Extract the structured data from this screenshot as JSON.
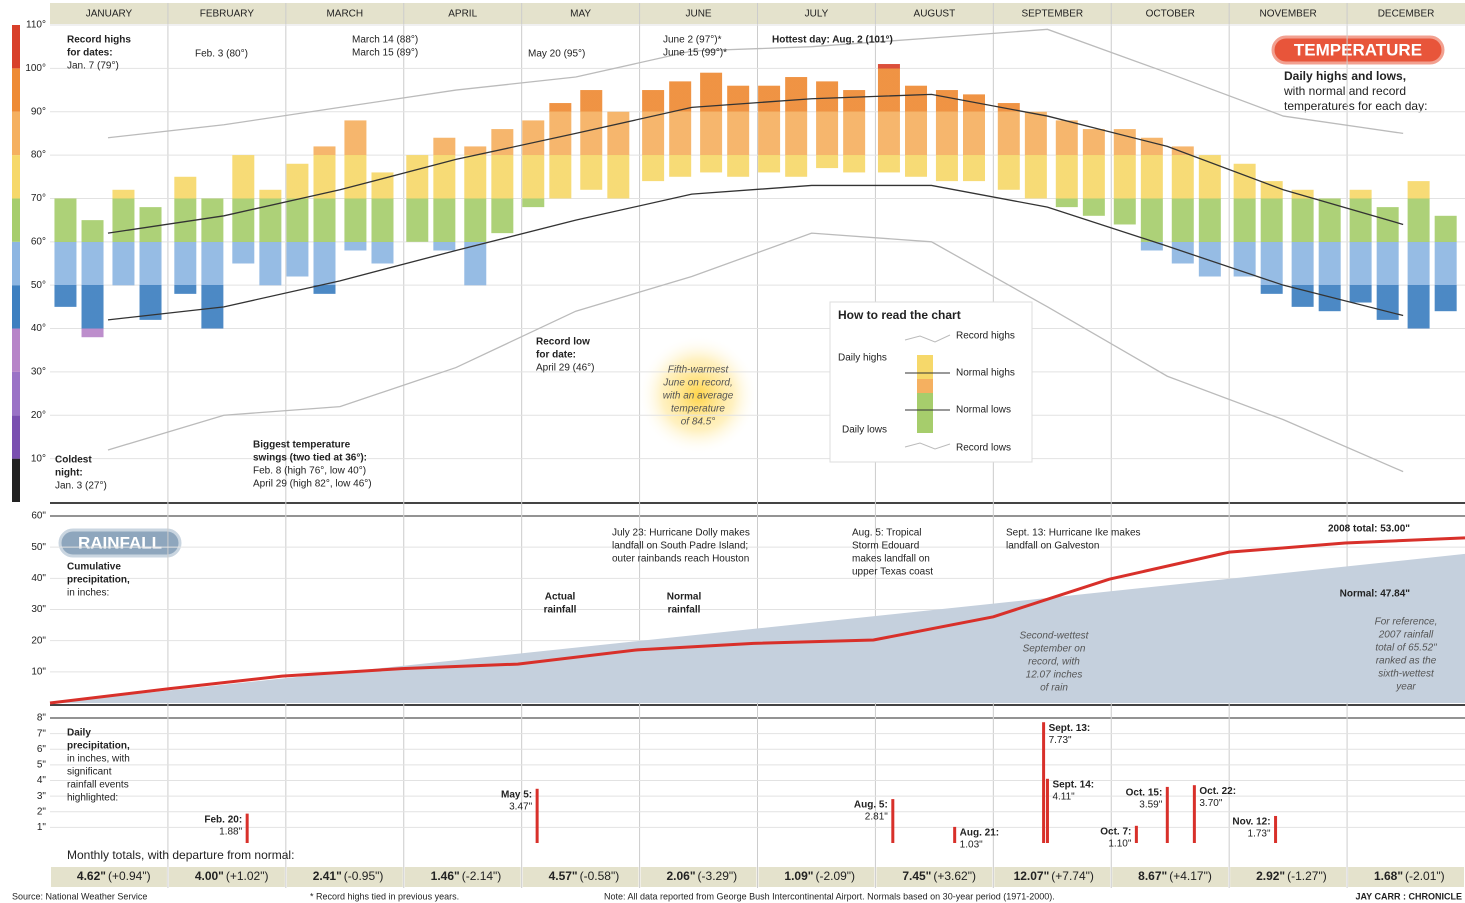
{
  "months": [
    "JANUARY",
    "FEBRUARY",
    "MARCH",
    "APRIL",
    "MAY",
    "JUNE",
    "JULY",
    "AUGUST",
    "SEPTEMBER",
    "OCTOBER",
    "NOVEMBER",
    "DECEMBER"
  ],
  "chart_data": [
    {
      "type": "range-bar",
      "title": "TEMPERATURE",
      "subtitle": [
        "Daily highs and lows,",
        "with normal and record",
        "temperatures for each day:"
      ],
      "xlim": [
        0,
        366
      ],
      "ylim": [
        0,
        110
      ],
      "yticks": [
        {
          "value": 10,
          "label": "10°"
        },
        {
          "value": 20,
          "label": "20°"
        },
        {
          "value": 30,
          "label": "30°"
        },
        {
          "value": 40,
          "label": "40°"
        },
        {
          "value": 50,
          "label": "50°"
        },
        {
          "value": 60,
          "label": "60°"
        },
        {
          "value": 70,
          "label": "70°"
        },
        {
          "value": 80,
          "label": "80°"
        },
        {
          "value": 90,
          "label": "90°"
        },
        {
          "value": 100,
          "label": "100°"
        },
        {
          "value": 110,
          "label": "110°"
        }
      ],
      "x": [
        4,
        11,
        19,
        26,
        35,
        42,
        50,
        57,
        64,
        71,
        79,
        86,
        95,
        102,
        110,
        117,
        125,
        132,
        140,
        147,
        156,
        163,
        171,
        178,
        186,
        193,
        201,
        208,
        217,
        224,
        232,
        239,
        248,
        255,
        263,
        270,
        278,
        285,
        293,
        300,
        309,
        316,
        324,
        331,
        339,
        346,
        354,
        361
      ],
      "series": [
        {
          "name": "Daily highs",
          "values": [
            70,
            65,
            72,
            68,
            75,
            70,
            80,
            72,
            78,
            82,
            88,
            76,
            80,
            84,
            82,
            86,
            88,
            92,
            95,
            90,
            95,
            97,
            99,
            96,
            96,
            98,
            97,
            95,
            101,
            96,
            95,
            94,
            92,
            90,
            88,
            86,
            86,
            84,
            82,
            80,
            78,
            74,
            72,
            70,
            72,
            68,
            74,
            66
          ]
        },
        {
          "name": "Daily lows",
          "values": [
            45,
            38,
            50,
            42,
            48,
            40,
            55,
            50,
            52,
            48,
            58,
            55,
            60,
            58,
            50,
            62,
            68,
            70,
            72,
            70,
            74,
            75,
            76,
            75,
            76,
            75,
            77,
            76,
            76,
            75,
            74,
            74,
            72,
            70,
            68,
            66,
            64,
            58,
            55,
            52,
            52,
            48,
            45,
            44,
            46,
            42,
            40,
            44
          ]
        }
      ],
      "line_x": [
        15,
        45,
        75,
        105,
        136,
        166,
        197,
        228,
        258,
        289,
        319,
        350
      ],
      "lines": [
        {
          "name": "Record highs",
          "color": "#bbbbbb",
          "values": [
            84,
            87,
            91,
            95,
            98,
            104,
            105,
            107,
            109,
            99,
            89,
            85
          ]
        },
        {
          "name": "Normal highs",
          "color": "#333333",
          "values": [
            62,
            66,
            72,
            79,
            85,
            91,
            93,
            94,
            89,
            82,
            72,
            64
          ]
        },
        {
          "name": "Normal lows",
          "color": "#333333",
          "values": [
            42,
            45,
            51,
            58,
            65,
            71,
            73,
            73,
            68,
            59,
            50,
            43
          ]
        },
        {
          "name": "Record lows",
          "color": "#bbbbbb",
          "values": [
            12,
            20,
            22,
            31,
            44,
            52,
            62,
            60,
            45,
            29,
            19,
            7
          ]
        }
      ],
      "color_bands": [
        {
          "from": 0,
          "to": 10,
          "color": "#222222"
        },
        {
          "from": 10,
          "to": 20,
          "color": "#7a4fb0"
        },
        {
          "from": 20,
          "to": 30,
          "color": "#9a72c6"
        },
        {
          "from": 30,
          "to": 40,
          "color": "#b784c8"
        },
        {
          "from": 40,
          "to": 50,
          "color": "#3d7fc0"
        },
        {
          "from": 50,
          "to": 60,
          "color": "#8db6e2"
        },
        {
          "from": 60,
          "to": 70,
          "color": "#a6cd6c"
        },
        {
          "from": 70,
          "to": 80,
          "color": "#f6d86a"
        },
        {
          "from": 80,
          "to": 90,
          "color": "#f5b060"
        },
        {
          "from": 90,
          "to": 100,
          "color": "#ee8a34"
        },
        {
          "from": 100,
          "to": 110,
          "color": "#d8402a"
        }
      ],
      "legend": {
        "title": "How to read the chart",
        "items": [
          "Record highs",
          "Daily highs",
          "Normal highs",
          "Normal lows",
          "Daily lows",
          "Record lows"
        ]
      },
      "grid": true
    },
    {
      "type": "line",
      "title": "RAINFALL",
      "xlim": [
        0,
        366
      ],
      "ylim": [
        0,
        60
      ],
      "yticks": [
        {
          "value": 10,
          "label": "10\""
        },
        {
          "value": 20,
          "label": "20\""
        },
        {
          "value": 30,
          "label": "30\""
        },
        {
          "value": 40,
          "label": "40\""
        },
        {
          "value": 50,
          "label": "50\""
        },
        {
          "value": 60,
          "label": "60\""
        }
      ],
      "series": [
        {
          "name": "Actual rainfall",
          "color": "#d8302a",
          "x": [
            0,
            31,
            60,
            91,
            121,
            152,
            182,
            213,
            244,
            274,
            305,
            335,
            366
          ],
          "values": [
            0,
            4.62,
            8.62,
            11.03,
            12.49,
            17.06,
            19.12,
            20.21,
            27.66,
            39.73,
            48.4,
            51.32,
            53.0
          ]
        },
        {
          "name": "Normal rainfall",
          "color": "#c5d0dd",
          "x": [
            0,
            366
          ],
          "values": [
            0,
            47.84
          ]
        }
      ],
      "grid": true
    },
    {
      "type": "bar",
      "xlim": [
        0,
        366
      ],
      "ylim": [
        0,
        8
      ],
      "color": "#d8302a",
      "yticks": [
        {
          "value": 1,
          "label": "1\""
        },
        {
          "value": 2,
          "label": "2\""
        },
        {
          "value": 3,
          "label": "3\""
        },
        {
          "value": 4,
          "label": "4\""
        },
        {
          "value": 5,
          "label": "5\""
        },
        {
          "value": 6,
          "label": "6\""
        },
        {
          "value": 7,
          "label": "7\""
        },
        {
          "value": 8,
          "label": "8\""
        }
      ],
      "x": [
        51,
        126,
        218,
        234,
        257,
        258,
        281,
        289,
        296,
        317
      ],
      "labels": [
        "Feb. 20:",
        "May 5:",
        "Aug. 5:",
        "Aug. 21:",
        "Sept. 13:",
        "Sept. 14:",
        "Oct. 7:",
        "Oct. 15:",
        "Oct. 22:",
        "Nov. 12:"
      ],
      "values": [
        1.88,
        3.47,
        2.81,
        1.03,
        7.73,
        4.11,
        1.1,
        3.59,
        3.7,
        1.73
      ],
      "value_labels": [
        "1.88\"",
        "3.47\"",
        "2.81\"",
        "1.03\"",
        "7.73\"",
        "4.11\"",
        "1.10\"",
        "3.59\"",
        "3.70\"",
        "1.73\""
      ],
      "grid": true
    }
  ],
  "annotations": [
    [
      "Record highs",
      "for dates:",
      "Jan. 7 (79°)"
    ],
    [
      "Feb. 3 (80°)"
    ],
    [
      "March 14 (88°)",
      "March 15 (89°)"
    ],
    [
      "May 20 (95°)"
    ],
    [
      "June 2 (97°)*",
      "June 15 (99°)*"
    ],
    [
      "Hottest day: Aug. 2 (101°)"
    ],
    [
      "Record low",
      "for date:",
      "April 29 (46°)"
    ],
    [
      "Biggest temperature",
      "swings (two tied at 36°):",
      "Feb. 8 (high 76°, low 40°)",
      "April 29 (high 82°, low 46°)"
    ],
    [
      "Coldest",
      "night:",
      "Jan. 3 (27°)"
    ],
    [
      "Fifth-warmest",
      "June on record,",
      "with an average",
      "temperature",
      "of 84.5°"
    ],
    [
      "Cumulative",
      "precipitation,",
      "in inches:"
    ],
    [
      "Actual",
      "rainfall"
    ],
    [
      "Normal",
      "rainfall"
    ],
    [
      "July 23: Hurricane Dolly makes",
      "landfall on South Padre Island;",
      "outer rainbands reach Houston"
    ],
    [
      "Aug. 5: Tropical",
      "Storm Edouard",
      "makes landfall on",
      "upper Texas coast"
    ],
    [
      "Sept. 13: Hurricane Ike makes",
      "landfall on Galveston"
    ],
    [
      "2008 total: 53.00\""
    ],
    [
      "Normal: 47.84\""
    ],
    [
      "Second-wettest",
      "September on",
      "record, with",
      "12.07 inches",
      "of rain"
    ],
    [
      "For reference,",
      "2007 rainfall",
      "total of 65.52\"",
      "ranked as the",
      "sixth-wettest",
      "year"
    ],
    [
      "Daily",
      "precipitation,",
      "in inches, with",
      "significant",
      "rainfall events",
      "highlighted:"
    ]
  ],
  "monthly_totals": {
    "title": "Monthly totals, with departure from normal:",
    "totals": [
      "4.62\"",
      "4.00\"",
      "2.41\"",
      "1.46\"",
      "4.57\"",
      "2.06\"",
      "1.09\"",
      "7.45\"",
      "12.07\"",
      "8.67\"",
      "2.92\"",
      "1.68\""
    ],
    "departures": [
      "(+0.94\")",
      "(+1.02\")",
      "(-0.95\")",
      "(-2.14\")",
      "(-0.58\")",
      "(-3.29\")",
      "(-2.09\")",
      "(+3.62\")",
      "(+7.74\")",
      "(+4.17\")",
      "(-1.27\")",
      "(-2.01\")"
    ]
  },
  "footer": [
    "Source: National Weather Service",
    "* Record highs tied in previous years.",
    "Note: All data reported from George Bush Intercontinental Airport. Normals based on 30-year period (1971-2000).",
    "JAY CARR : CHRONICLE"
  ]
}
